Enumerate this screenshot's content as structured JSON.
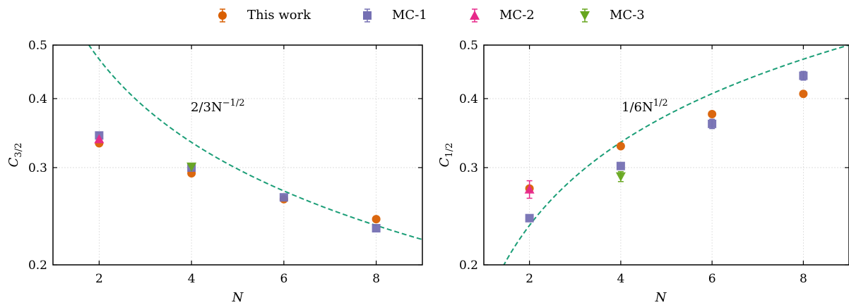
{
  "colors": {
    "this_work": "#d95f02",
    "mc1": "#7570b3",
    "mc2": "#e7298a",
    "mc3": "#66a61e",
    "fit": "#1b9e77"
  },
  "legend": [
    {
      "label": "This work",
      "marker": "circle",
      "color": "#d95f02"
    },
    {
      "label": "MC-1",
      "marker": "square",
      "color": "#7570b3"
    },
    {
      "label": "MC-2",
      "marker": "triangle-up",
      "color": "#e7298a"
    },
    {
      "label": "MC-3",
      "marker": "triangle-down",
      "color": "#66a61e"
    }
  ],
  "chart_data": [
    {
      "type": "scatter",
      "xlabel": "N",
      "ylabel_main": "C",
      "ylabel_sub": "3/2",
      "xlim": [
        1,
        9
      ],
      "ylim": [
        0.2,
        0.5
      ],
      "yscale": "log",
      "xticks": [
        2,
        4,
        6,
        8
      ],
      "xtick_labels": [
        "2",
        "4",
        "6",
        "8"
      ],
      "yticks": [
        0.2,
        0.3,
        0.4,
        0.5
      ],
      "ytick_labels": [
        "0.2",
        "0.3",
        "0.4",
        "0.5"
      ],
      "grid": true,
      "annotation": "2/3N",
      "annotation_exp": "−1/2",
      "curve": {
        "coef": 0.6667,
        "power": -0.5
      },
      "series": [
        {
          "name": "This work",
          "marker": "circle",
          "color": "#d95f02",
          "x": [
            2,
            4,
            6,
            8
          ],
          "y": [
            0.332,
            0.293,
            0.263,
            0.242
          ],
          "err": [
            0,
            0,
            0,
            0
          ]
        },
        {
          "name": "MC-1",
          "marker": "square",
          "color": "#7570b3",
          "x": [
            2,
            4,
            6,
            8
          ],
          "y": [
            0.343,
            0.3,
            0.265,
            0.233
          ],
          "err": [
            0.004,
            0,
            0,
            0
          ]
        },
        {
          "name": "MC-2",
          "marker": "triangle-up",
          "color": "#e7298a",
          "x": [
            2
          ],
          "y": [
            0.338
          ],
          "err": [
            0
          ]
        },
        {
          "name": "MC-3",
          "marker": "triangle-down",
          "color": "#66a61e",
          "x": [
            4
          ],
          "y": [
            0.301
          ],
          "err": [
            0
          ]
        }
      ]
    },
    {
      "type": "scatter",
      "xlabel": "N",
      "ylabel_main": "C",
      "ylabel_sub": "1/2",
      "xlim": [
        1,
        9
      ],
      "ylim": [
        0.2,
        0.5
      ],
      "yscale": "log",
      "xticks": [
        2,
        4,
        6,
        8
      ],
      "xtick_labels": [
        "2",
        "4",
        "6",
        "8"
      ],
      "yticks": [
        0.2,
        0.3,
        0.4,
        0.5
      ],
      "ytick_labels": [
        "0.2",
        "0.3",
        "0.4",
        "0.5"
      ],
      "grid": true,
      "annotation": "1/6N",
      "annotation_exp": "1/2",
      "curve": {
        "coef": 0.1667,
        "power": 0.5
      },
      "series": [
        {
          "name": "This work",
          "marker": "circle",
          "color": "#d95f02",
          "x": [
            2,
            4,
            6,
            8
          ],
          "y": [
            0.275,
            0.328,
            0.375,
            0.408
          ],
          "err": [
            0,
            0,
            0,
            0
          ]
        },
        {
          "name": "MC-1",
          "marker": "square",
          "color": "#7570b3",
          "x": [
            2,
            4,
            6,
            8
          ],
          "y": [
            0.243,
            0.302,
            0.36,
            0.44
          ],
          "err": [
            0,
            0,
            0.007,
            0.008
          ]
        },
        {
          "name": "MC-2",
          "marker": "triangle-up",
          "color": "#e7298a",
          "x": [
            2
          ],
          "y": [
            0.274
          ],
          "err": [
            0.01
          ]
        },
        {
          "name": "MC-3",
          "marker": "triangle-down",
          "color": "#66a61e",
          "x": [
            4
          ],
          "y": [
            0.289
          ],
          "err": [
            0.006
          ]
        }
      ]
    }
  ]
}
